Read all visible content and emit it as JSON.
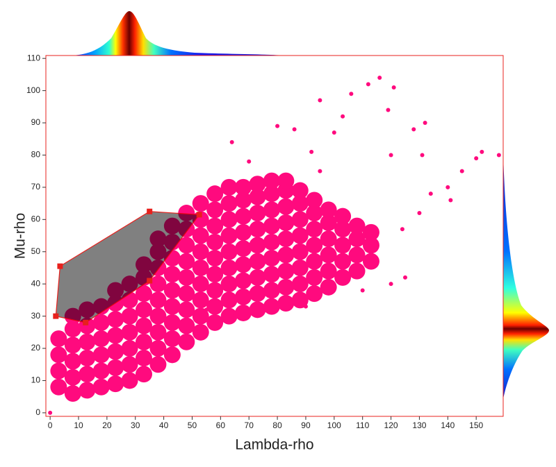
{
  "chart_data": {
    "type": "scatter",
    "xlabel": "Lambda-rho",
    "ylabel": "Mu-rho",
    "xlim": [
      -1.5,
      159.5
    ],
    "ylim": [
      -1.1,
      110.9
    ],
    "xticks": [
      0,
      10,
      20,
      30,
      40,
      50,
      60,
      70,
      80,
      90,
      100,
      110,
      120,
      130,
      140,
      150
    ],
    "yticks": [
      0,
      10,
      20,
      30,
      40,
      50,
      60,
      70,
      80,
      90,
      100,
      110
    ],
    "series": [
      {
        "color": "#ff0a7e",
        "marker_size": 12,
        "x": [
          3,
          3,
          3,
          3,
          8,
          8,
          8,
          8,
          8,
          8,
          13,
          13,
          13,
          13,
          13,
          13,
          18,
          18,
          18,
          18,
          18,
          18,
          23,
          23,
          23,
          23,
          23,
          23,
          23,
          28,
          28,
          28,
          28,
          28,
          28,
          28,
          33,
          33,
          33,
          33,
          33,
          33,
          33,
          33,
          38,
          38,
          38,
          38,
          38,
          38,
          38,
          38,
          38,
          43,
          43,
          43,
          43,
          43,
          43,
          43,
          43,
          43,
          48,
          48,
          48,
          48,
          48,
          48,
          48,
          48,
          48,
          53,
          53,
          53,
          53,
          53,
          53,
          53,
          53,
          53,
          58,
          58,
          58,
          58,
          58,
          58,
          58,
          58,
          58,
          63,
          63,
          63,
          63,
          63,
          63,
          63,
          63,
          63,
          68,
          68,
          68,
          68,
          68,
          68,
          68,
          68,
          68,
          73,
          73,
          73,
          73,
          73,
          73,
          73,
          73,
          73,
          78,
          78,
          78,
          78,
          78,
          78,
          78,
          78,
          78,
          83,
          83,
          83,
          83,
          83,
          83,
          83,
          83,
          83,
          88,
          88,
          88,
          88,
          88,
          88,
          88,
          88,
          93,
          93,
          93,
          93,
          93,
          93,
          93,
          98,
          98,
          98,
          98,
          98,
          98,
          103,
          103,
          103,
          103,
          103,
          108,
          108,
          108,
          108,
          113,
          113,
          113
        ],
        "values": [
          8,
          13,
          18,
          23,
          6,
          11,
          16,
          21,
          26,
          30,
          7,
          12,
          17,
          22,
          27,
          32,
          8,
          13,
          18,
          23,
          28,
          33,
          9,
          14,
          19,
          24,
          29,
          34,
          38,
          10,
          15,
          20,
          25,
          30,
          35,
          40,
          12,
          17,
          22,
          27,
          32,
          37,
          42,
          46,
          15,
          20,
          25,
          30,
          35,
          40,
          45,
          50,
          54,
          18,
          23,
          28,
          33,
          38,
          43,
          48,
          53,
          58,
          22,
          27,
          32,
          37,
          42,
          47,
          52,
          57,
          62,
          25,
          30,
          35,
          40,
          45,
          50,
          55,
          60,
          65,
          28,
          33,
          38,
          43,
          48,
          53,
          58,
          63,
          68,
          30,
          35,
          40,
          45,
          50,
          55,
          60,
          65,
          70,
          31,
          36,
          41,
          46,
          51,
          56,
          61,
          66,
          70,
          32,
          37,
          42,
          47,
          52,
          57,
          62,
          67,
          71,
          33,
          38,
          43,
          48,
          53,
          58,
          63,
          68,
          72,
          34,
          39,
          44,
          49,
          54,
          59,
          64,
          69,
          72,
          35,
          40,
          45,
          50,
          55,
          60,
          65,
          69,
          37,
          42,
          47,
          52,
          57,
          62,
          66,
          39,
          44,
          49,
          54,
          59,
          63,
          42,
          47,
          52,
          57,
          61,
          44,
          49,
          54,
          58,
          47,
          52,
          56
        ]
      },
      {
        "color": "#ff0a7e",
        "marker_size": 3,
        "x": [
          0,
          116,
          112,
          121,
          106,
          95,
          103,
          119,
          128,
          132,
          100,
          86,
          80,
          95,
          120,
          131,
          140,
          145,
          150,
          152,
          158,
          141,
          125,
          120,
          110,
          90,
          64,
          55,
          130,
          134,
          64,
          70,
          92,
          124
        ],
        "values": [
          0,
          104,
          102,
          101,
          99,
          97,
          92,
          94,
          88,
          90,
          87,
          88,
          89,
          75,
          80,
          80,
          70,
          75,
          79,
          81,
          80,
          66,
          42,
          40,
          38,
          33,
          30,
          32,
          62,
          68,
          84,
          78,
          81,
          57
        ]
      }
    ],
    "selection_polygon": {
      "color": "#e8201c",
      "fill": "#808080",
      "x": [
        3.5,
        35,
        52.5,
        35,
        12.5,
        2
      ],
      "y": [
        45.5,
        62.5,
        61.5,
        41,
        28,
        30
      ]
    }
  }
}
